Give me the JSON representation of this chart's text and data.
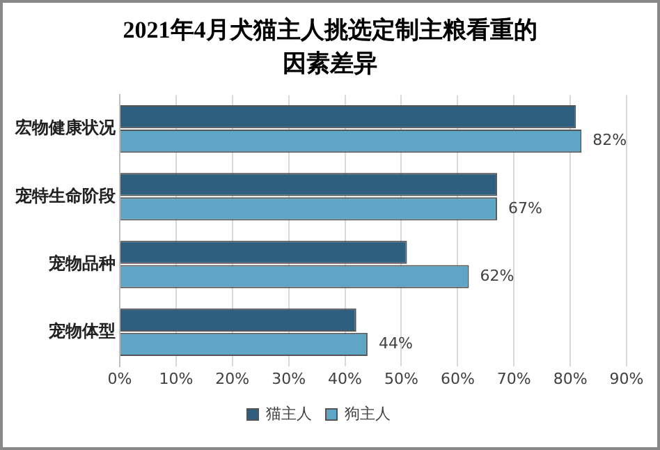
{
  "chart_data": {
    "type": "bar",
    "orientation": "horizontal",
    "title": "2021年4月犬猫主人挑选定制主粮看重的因素差异",
    "categories": [
      "宏物健康状况",
      "宠特生命阶段",
      "宠物品种",
      "宠物体型"
    ],
    "series": [
      {
        "name": "猫主人",
        "color": "#2f5f7e",
        "values": [
          81,
          67,
          51,
          42
        ]
      },
      {
        "name": "狗主人",
        "color": "#5fa5c6",
        "values": [
          82,
          67,
          62,
          44
        ],
        "value_labels": [
          "82%",
          "67%",
          "62%",
          "44%"
        ]
      }
    ],
    "xlim": [
      0,
      90
    ],
    "xticks": [
      {
        "value": 0,
        "label": "0%"
      },
      {
        "value": 10,
        "label": "10%"
      },
      {
        "value": 20,
        "label": "20%"
      },
      {
        "value": 30,
        "label": "30%"
      },
      {
        "value": 40,
        "label": "40%"
      },
      {
        "value": 50,
        "label": "50%"
      },
      {
        "value": 60,
        "label": "60%"
      },
      {
        "value": 70,
        "label": "70%"
      },
      {
        "value": 80,
        "label": "80%"
      },
      {
        "value": 90,
        "label": "90%"
      }
    ],
    "grid": "x",
    "legend": "bottom"
  }
}
